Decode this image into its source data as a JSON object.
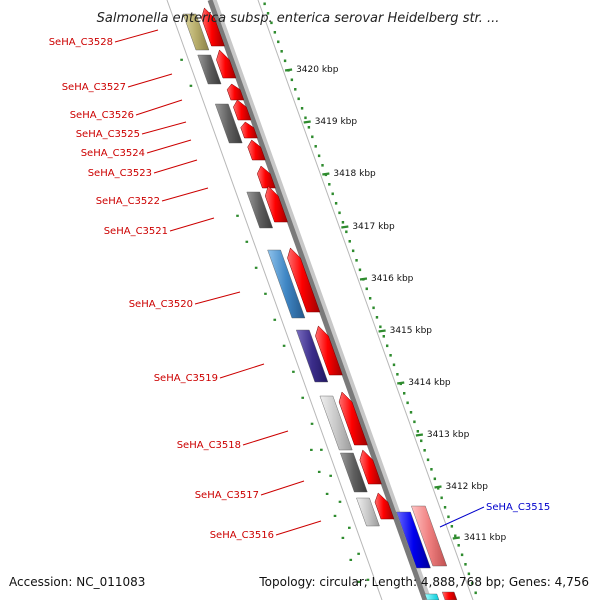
{
  "title": "Salmonella enterica subsp. enterica serovar Heidelberg str. ...",
  "footer": {
    "accession": "Accession: NC_011083",
    "topology": "Topology: circular; Length: 4,888,768 bp; Genes: 4,756"
  },
  "colors": {
    "cds_arrow": "#ff0000",
    "backbone": "#808080",
    "tick": "#2e8b2e",
    "label_left": "#cc0000",
    "label_right": "#0000cc"
  },
  "ticks": [
    {
      "label": "3420 kbp"
    },
    {
      "label": "3419 kbp"
    },
    {
      "label": "3418 kbp"
    },
    {
      "label": "3417 kbp"
    },
    {
      "label": "3416 kbp"
    },
    {
      "label": "3415 kbp"
    },
    {
      "label": "3414 kbp"
    },
    {
      "label": "3413 kbp"
    },
    {
      "label": "3412 kbp"
    },
    {
      "label": "3411 kbp"
    }
  ],
  "genes": [
    {
      "label": "SeHA_C3528",
      "side": "left"
    },
    {
      "label": "SeHA_C3527",
      "side": "left"
    },
    {
      "label": "SeHA_C3526",
      "side": "left"
    },
    {
      "label": "SeHA_C3525",
      "side": "left"
    },
    {
      "label": "SeHA_C3524",
      "side": "left"
    },
    {
      "label": "SeHA_C3523",
      "side": "left"
    },
    {
      "label": "SeHA_C3522",
      "side": "left"
    },
    {
      "label": "SeHA_C3521",
      "side": "left"
    },
    {
      "label": "SeHA_C3520",
      "side": "left"
    },
    {
      "label": "SeHA_C3519",
      "side": "left"
    },
    {
      "label": "SeHA_C3518",
      "side": "left"
    },
    {
      "label": "SeHA_C3517",
      "side": "left"
    },
    {
      "label": "SeHA_C3516",
      "side": "left"
    },
    {
      "label": "SeHA_C3515",
      "side": "right"
    }
  ]
}
